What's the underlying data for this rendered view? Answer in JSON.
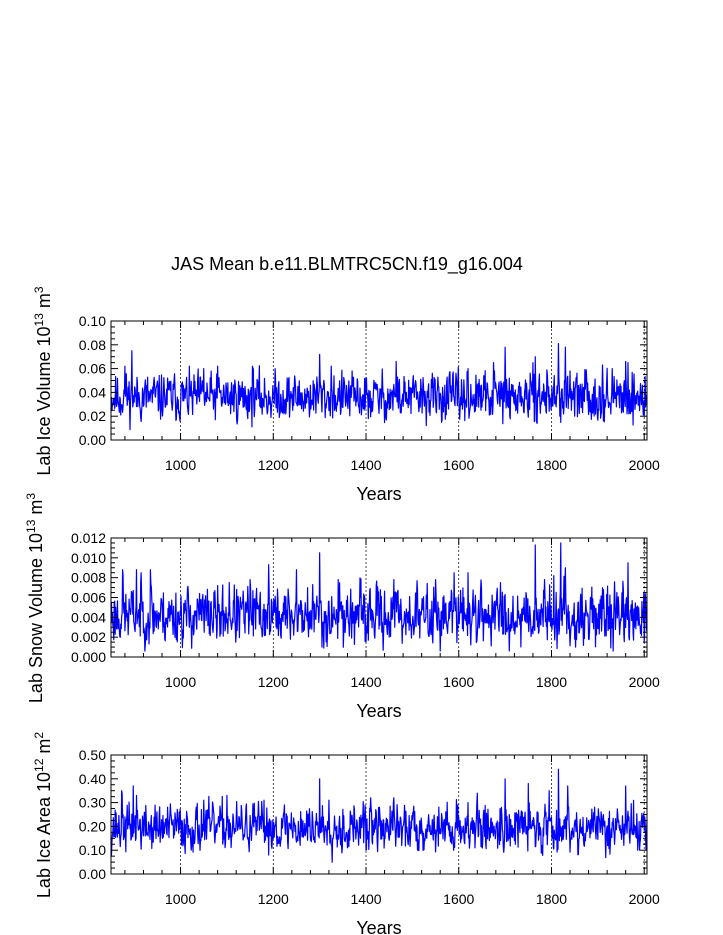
{
  "title": "JAS Mean b.e11.BLMTRC5CN.f19_g16.004",
  "colors": {
    "series": "#0000ff",
    "axis": "#000000",
    "grid": "#000000"
  },
  "chart_data": [
    {
      "type": "line",
      "ylabel_prefix": "Lab Ice Volume 10",
      "ylabel_exp1": "13",
      "ylabel_mid": " m",
      "ylabel_exp2": "3",
      "xlabel": "Years",
      "xlim": [
        850,
        2006
      ],
      "ylim": [
        0,
        0.1
      ],
      "xticks": [
        "1000",
        "1200",
        "1400",
        "1600",
        "1800",
        "2000"
      ],
      "yticks": [
        "0.00",
        "0.02",
        "0.04",
        "0.06",
        "0.08",
        "0.10"
      ],
      "grid_x": true,
      "series": [
        {
          "name": "Lab Ice Volume",
          "base": 0.036,
          "amp": 0.011,
          "seed": 11,
          "x": [
            880,
            895,
            1050,
            1080,
            1155,
            1300,
            1325,
            1405,
            1465,
            1620,
            1675,
            1700,
            1710,
            1765,
            1790,
            1815,
            1830,
            1840,
            1850,
            1875,
            1910,
            1960,
            1965,
            2000
          ],
          "y": [
            0.062,
            0.075,
            0.06,
            0.062,
            0.062,
            0.072,
            0.062,
            0.018,
            0.066,
            0.06,
            0.065,
            0.078,
            0.02,
            0.07,
            0.059,
            0.081,
            0.078,
            0.058,
            0.02,
            0.059,
            0.063,
            0.066,
            0.065,
            0.02
          ]
        }
      ]
    },
    {
      "type": "line",
      "ylabel_prefix": "Lab Snow Volume 10",
      "ylabel_exp1": "13",
      "ylabel_mid": " m",
      "ylabel_exp2": "3",
      "xlabel": "Years",
      "xlim": [
        850,
        2006
      ],
      "ylim": [
        0,
        0.012
      ],
      "xticks": [
        "1000",
        "1200",
        "1400",
        "1600",
        "1800",
        "2000"
      ],
      "yticks": [
        "0.000",
        "0.002",
        "0.004",
        "0.006",
        "0.008",
        "0.010",
        "0.012"
      ],
      "grid_x": true,
      "series": [
        {
          "name": "Lab Snow Volume",
          "base": 0.0042,
          "amp": 0.0016,
          "seed": 23,
          "x": [
            875,
            895,
            905,
            915,
            925,
            935,
            1105,
            1150,
            1190,
            1250,
            1300,
            1305,
            1340,
            1400,
            1460,
            1550,
            1590,
            1620,
            1690,
            1745,
            1765,
            1785,
            1805,
            1820,
            1830,
            1850,
            1880,
            1965,
            2000
          ],
          "y": [
            0.0088,
            0.0065,
            0.0088,
            0.0085,
            0.0028,
            0.0088,
            0.0075,
            0.0078,
            0.0093,
            0.0088,
            0.0105,
            0.001,
            0.0078,
            0.0015,
            0.0078,
            0.0078,
            0.0085,
            0.0085,
            0.0075,
            0.0065,
            0.0113,
            0.0078,
            0.0082,
            0.0115,
            0.009,
            0.0018,
            0.0018,
            0.0095,
            0.0015
          ]
        }
      ]
    },
    {
      "type": "line",
      "ylabel_prefix": "Lab Ice Area 10",
      "ylabel_exp1": "12",
      "ylabel_mid": " m",
      "ylabel_exp2": "2",
      "xlabel": "Years",
      "xlim": [
        850,
        2006
      ],
      "ylim": [
        0,
        0.5
      ],
      "xticks": [
        "1000",
        "1200",
        "1400",
        "1600",
        "1800",
        "2000"
      ],
      "yticks": [
        "0.00",
        "0.10",
        "0.20",
        "0.30",
        "0.40",
        "0.50"
      ],
      "grid_x": true,
      "series": [
        {
          "name": "Lab Ice Area",
          "base": 0.195,
          "amp": 0.055,
          "seed": 37,
          "x": [
            873,
            898,
            905,
            1050,
            1100,
            1180,
            1300,
            1320,
            1360,
            1400,
            1410,
            1460,
            1620,
            1700,
            1750,
            1795,
            1815,
            1835,
            1870,
            1960,
            1990,
            2004
          ],
          "y": [
            0.35,
            0.37,
            0.33,
            0.31,
            0.33,
            0.31,
            0.4,
            0.31,
            0.11,
            0.1,
            0.32,
            0.32,
            0.3,
            0.4,
            0.38,
            0.35,
            0.44,
            0.37,
            0.12,
            0.37,
            0.1,
            0.1
          ]
        }
      ]
    }
  ]
}
